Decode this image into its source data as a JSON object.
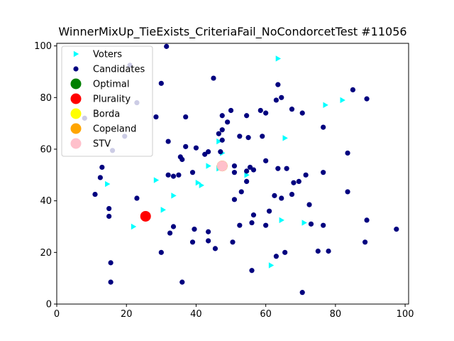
{
  "chart_data": {
    "type": "scatter",
    "title": "WinnerMixUp_TieExists_CriteriaFail_NoCondorcetTest #11056",
    "xlabel": "",
    "ylabel": "",
    "xlim": [
      0,
      101
    ],
    "ylim": [
      0,
      101
    ],
    "xticks": [
      0,
      20,
      40,
      60,
      80,
      100
    ],
    "yticks": [
      0,
      20,
      40,
      60,
      80,
      100
    ],
    "grid": false,
    "legend_position": "top-left",
    "series": [
      {
        "name": "Voters",
        "marker": "triangle-right",
        "color": "#00ffff",
        "points": [
          [
            63.5,
            95.1
          ],
          [
            77.1,
            77.1
          ],
          [
            82.0,
            79.0
          ],
          [
            65.5,
            64.3
          ],
          [
            46.5,
            63.0
          ],
          [
            47.5,
            58.5
          ],
          [
            43.5,
            53.5
          ],
          [
            46.5,
            52.5
          ],
          [
            54.5,
            50.0
          ],
          [
            28.5,
            48.0
          ],
          [
            40.5,
            47.0
          ],
          [
            41.5,
            46.0
          ],
          [
            14.5,
            46.5
          ],
          [
            33.5,
            42.0
          ],
          [
            30.5,
            36.5
          ],
          [
            22.0,
            30.0
          ],
          [
            64.5,
            32.5
          ],
          [
            71.0,
            31.5
          ],
          [
            61.5,
            15.0
          ]
        ]
      },
      {
        "name": "Candidates",
        "marker": "circle",
        "color": "#00007f",
        "points": [
          [
            31.5,
            99.8
          ],
          [
            21.0,
            92.5
          ],
          [
            45.0,
            87.5
          ],
          [
            30.0,
            85.5
          ],
          [
            63.5,
            85.0
          ],
          [
            85.0,
            83.0
          ],
          [
            89.0,
            79.5
          ],
          [
            63.0,
            79.0
          ],
          [
            64.5,
            80.0
          ],
          [
            23.0,
            78.0
          ],
          [
            8.0,
            72.0
          ],
          [
            28.5,
            72.5
          ],
          [
            37.0,
            72.5
          ],
          [
            47.5,
            73.0
          ],
          [
            50.0,
            75.0
          ],
          [
            54.5,
            73.0
          ],
          [
            58.5,
            75.0
          ],
          [
            60.0,
            74.0
          ],
          [
            67.5,
            75.5
          ],
          [
            70.5,
            74.0
          ],
          [
            49.0,
            70.5
          ],
          [
            76.5,
            68.5
          ],
          [
            47.5,
            67.5
          ],
          [
            46.5,
            66.0
          ],
          [
            52.5,
            65.0
          ],
          [
            55.0,
            64.5
          ],
          [
            59.0,
            65.0
          ],
          [
            19.5,
            65.0
          ],
          [
            32.0,
            63.0
          ],
          [
            37.0,
            61.0
          ],
          [
            40.0,
            60.5
          ],
          [
            47.5,
            63.5
          ],
          [
            16.0,
            59.5
          ],
          [
            43.5,
            59.0
          ],
          [
            42.5,
            58.0
          ],
          [
            47.0,
            59.0
          ],
          [
            35.5,
            57.0
          ],
          [
            36.0,
            56.0
          ],
          [
            83.5,
            58.5
          ],
          [
            60.0,
            55.5
          ],
          [
            13.0,
            53.0
          ],
          [
            51.0,
            53.5
          ],
          [
            55.5,
            53.0
          ],
          [
            56.5,
            52.0
          ],
          [
            54.5,
            51.5
          ],
          [
            63.5,
            52.5
          ],
          [
            66.0,
            52.5
          ],
          [
            51.0,
            51.0
          ],
          [
            32.0,
            50.0
          ],
          [
            33.5,
            49.5
          ],
          [
            35.0,
            50.0
          ],
          [
            39.0,
            51.0
          ],
          [
            12.5,
            49.0
          ],
          [
            54.5,
            47.5
          ],
          [
            68.0,
            47.0
          ],
          [
            69.5,
            47.5
          ],
          [
            71.5,
            50.0
          ],
          [
            76.5,
            51.0
          ],
          [
            11.0,
            42.5
          ],
          [
            23.0,
            41.0
          ],
          [
            53.0,
            43.5
          ],
          [
            51.0,
            40.5
          ],
          [
            62.5,
            42.0
          ],
          [
            64.5,
            41.0
          ],
          [
            67.5,
            42.5
          ],
          [
            83.5,
            43.5
          ],
          [
            72.5,
            38.5
          ],
          [
            61.0,
            36.0
          ],
          [
            15.0,
            37.0
          ],
          [
            15.0,
            34.0
          ],
          [
            56.5,
            34.5
          ],
          [
            89.0,
            32.5
          ],
          [
            33.5,
            30.0
          ],
          [
            39.5,
            29.0
          ],
          [
            52.5,
            30.5
          ],
          [
            56.0,
            31.5
          ],
          [
            60.0,
            30.5
          ],
          [
            73.0,
            31.0
          ],
          [
            76.5,
            30.5
          ],
          [
            97.5,
            29.0
          ],
          [
            32.5,
            27.5
          ],
          [
            43.5,
            28.0
          ],
          [
            39.0,
            24.0
          ],
          [
            43.5,
            24.5
          ],
          [
            50.5,
            24.0
          ],
          [
            88.5,
            24.0
          ],
          [
            45.5,
            21.5
          ],
          [
            30.0,
            20.0
          ],
          [
            63.0,
            18.5
          ],
          [
            65.5,
            20.0
          ],
          [
            75.0,
            20.5
          ],
          [
            78.0,
            20.5
          ],
          [
            15.5,
            16.0
          ],
          [
            56.0,
            13.0
          ],
          [
            15.5,
            8.5
          ],
          [
            36.0,
            8.5
          ],
          [
            70.5,
            4.5
          ]
        ]
      },
      {
        "name": "Optimal",
        "marker": "circle-large",
        "color": "#008000",
        "points": [
          [
            47.5,
            53.5
          ]
        ]
      },
      {
        "name": "Plurality",
        "marker": "circle-large",
        "color": "#ff0000",
        "points": [
          [
            25.5,
            34.0
          ]
        ]
      },
      {
        "name": "Borda",
        "marker": "circle-large",
        "color": "#ffff00",
        "points": [
          [
            47.5,
            53.5
          ]
        ]
      },
      {
        "name": "Copeland",
        "marker": "circle-large",
        "color": "#ffa500",
        "points": [
          [
            47.5,
            53.5
          ]
        ]
      },
      {
        "name": "STV",
        "marker": "circle-large",
        "color": "#ffc0cb",
        "points": [
          [
            47.5,
            53.5
          ]
        ]
      }
    ],
    "colors": {
      "axes": "#000000",
      "background": "#ffffff",
      "legend_border": "#cccccc"
    }
  }
}
